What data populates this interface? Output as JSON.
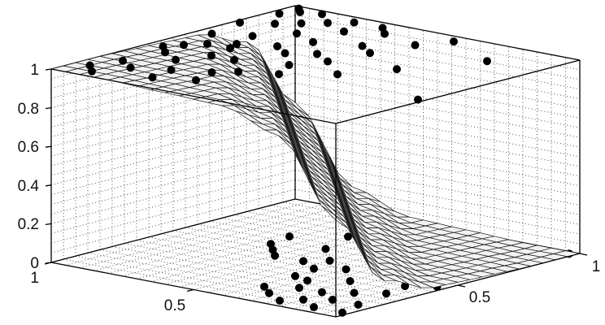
{
  "chart_data": {
    "type": "surface+scatter",
    "title": "",
    "xlabel": "",
    "ylabel": "",
    "zlabel": "",
    "xlim": [
      0,
      1
    ],
    "ylim": [
      0,
      1
    ],
    "zlim": [
      0,
      1
    ],
    "grid": true,
    "z_ticks": [
      "0",
      "0.2",
      "0.4",
      "0.6",
      "0.8",
      "1"
    ],
    "z_tick_values": [
      0,
      0.2,
      0.4,
      0.6,
      0.8,
      1
    ],
    "x_ticks": [
      {
        "value": 1,
        "label": "1"
      },
      {
        "value": 0.5,
        "label": "0.5"
      }
    ],
    "y_ticks": [
      {
        "value": 0.5,
        "label": "0.5"
      },
      {
        "value": 1,
        "label": "1"
      }
    ],
    "surface_profile": {
      "s_values": [
        0,
        0.2,
        0.4,
        0.6,
        0.8,
        1.0,
        1.2,
        1.4,
        1.6,
        1.8,
        2.0
      ],
      "z_values": [
        1.0,
        1.0,
        0.99,
        0.98,
        0.88,
        0.5,
        0.12,
        0.02,
        0.01,
        0.0,
        0.0
      ]
    },
    "points": [
      [
        0.05,
        0.1,
        1
      ],
      [
        0.08,
        0.2,
        1
      ],
      [
        0.1,
        0.35,
        1
      ],
      [
        0.12,
        0.5,
        1
      ],
      [
        0.05,
        0.6,
        1
      ],
      [
        0.02,
        0.75,
        1
      ],
      [
        0.03,
        0.9,
        1
      ],
      [
        0.06,
        0.95,
        1
      ],
      [
        0.1,
        0.8,
        1
      ],
      [
        0.15,
        0.65,
        1
      ],
      [
        0.2,
        0.5,
        1
      ],
      [
        0.18,
        0.3,
        1
      ],
      [
        0.25,
        0.2,
        1
      ],
      [
        0.3,
        0.4,
        1
      ],
      [
        0.28,
        0.6,
        1
      ],
      [
        0.22,
        0.75,
        1
      ],
      [
        0.15,
        0.85,
        1
      ],
      [
        0.12,
        0.97,
        1
      ],
      [
        0.2,
        0.9,
        1
      ],
      [
        0.35,
        0.55,
        1
      ],
      [
        0.4,
        0.3,
        1
      ],
      [
        0.38,
        0.15,
        1
      ],
      [
        0.45,
        0.45,
        1
      ],
      [
        0.32,
        0.7,
        1
      ],
      [
        0.25,
        0.95,
        1
      ],
      [
        0.3,
        0.85,
        1
      ],
      [
        0.05,
        0.4,
        1
      ],
      [
        0.15,
        0.15,
        1
      ],
      [
        0.1,
        0.05,
        1
      ],
      [
        0.35,
        0.25,
        1
      ],
      [
        0.5,
        0.35,
        1
      ],
      [
        0.42,
        0.6,
        1
      ],
      [
        0.45,
        0.75,
        1
      ],
      [
        0.5,
        0.55,
        1
      ],
      [
        0.08,
        0.45,
        1
      ],
      [
        0.18,
        0.55,
        1
      ],
      [
        0.22,
        0.4,
        1
      ],
      [
        0.03,
        0.98,
        1
      ],
      [
        0.35,
        0.95,
        1
      ],
      [
        0.4,
        0.9,
        1
      ],
      [
        0.55,
        0.85,
        1
      ],
      [
        0.6,
        0.95,
        1
      ],
      [
        0.52,
        0.7,
        1
      ],
      [
        0.82,
        0.83,
        1
      ],
      [
        0.98,
        0.36,
        1
      ],
      [
        0.7,
        0.6,
        1
      ],
      [
        0.62,
        0.45,
        1
      ],
      [
        0.27,
        0.1,
        1
      ],
      [
        0.6,
        0.3,
        0
      ],
      [
        0.65,
        0.45,
        0
      ],
      [
        0.7,
        0.2,
        0
      ],
      [
        0.75,
        0.35,
        0
      ],
      [
        0.8,
        0.1,
        0
      ],
      [
        0.85,
        0.25,
        0
      ],
      [
        0.9,
        0.4,
        0
      ],
      [
        0.95,
        0.15,
        0
      ],
      [
        0.98,
        0.05,
        0
      ],
      [
        0.55,
        0.5,
        0
      ],
      [
        0.6,
        0.6,
        0
      ],
      [
        0.7,
        0.55,
        0
      ],
      [
        0.8,
        0.5,
        0
      ],
      [
        0.9,
        0.6,
        0
      ],
      [
        0.95,
        0.7,
        0
      ],
      [
        0.85,
        0.75,
        0
      ],
      [
        0.75,
        0.8,
        0
      ],
      [
        0.65,
        0.85,
        0
      ],
      [
        0.95,
        0.9,
        0
      ],
      [
        0.9,
        0.95,
        0
      ],
      [
        0.5,
        0.7,
        0
      ],
      [
        0.58,
        0.4,
        0
      ],
      [
        0.72,
        0.65,
        0
      ],
      [
        0.88,
        0.05,
        0
      ],
      [
        0.78,
        0.2,
        0
      ],
      [
        0.68,
        0.1,
        0
      ],
      [
        0.62,
        0.15,
        0
      ],
      [
        0.82,
        0.6,
        0
      ],
      [
        0.92,
        0.3,
        0
      ],
      [
        0.97,
        0.45,
        0
      ],
      [
        0.45,
        0.6,
        0
      ],
      [
        0.5,
        0.45,
        0
      ],
      [
        0.4,
        0.75,
        0
      ],
      [
        0.98,
        0.98,
        0
      ],
      [
        0.96,
        0.8,
        0
      ],
      [
        0.7,
        0.9,
        0
      ],
      [
        0.55,
        0.95,
        0
      ],
      [
        0.6,
        0.75,
        0
      ],
      [
        0.3,
        0.55,
        0
      ],
      [
        0.35,
        0.5,
        0
      ],
      [
        0.28,
        0.65,
        0
      ],
      [
        0.4,
        0.45,
        0
      ],
      [
        0.66,
        0.28,
        0
      ],
      [
        0.86,
        0.15,
        0
      ],
      [
        0.93,
        0.52,
        0
      ],
      [
        0.76,
        0.05,
        0
      ]
    ],
    "colors": {
      "points": "#000000",
      "surface_fill": "#f2f2f2",
      "mesh": "#1a1a1a",
      "grid": "#555555"
    }
  }
}
